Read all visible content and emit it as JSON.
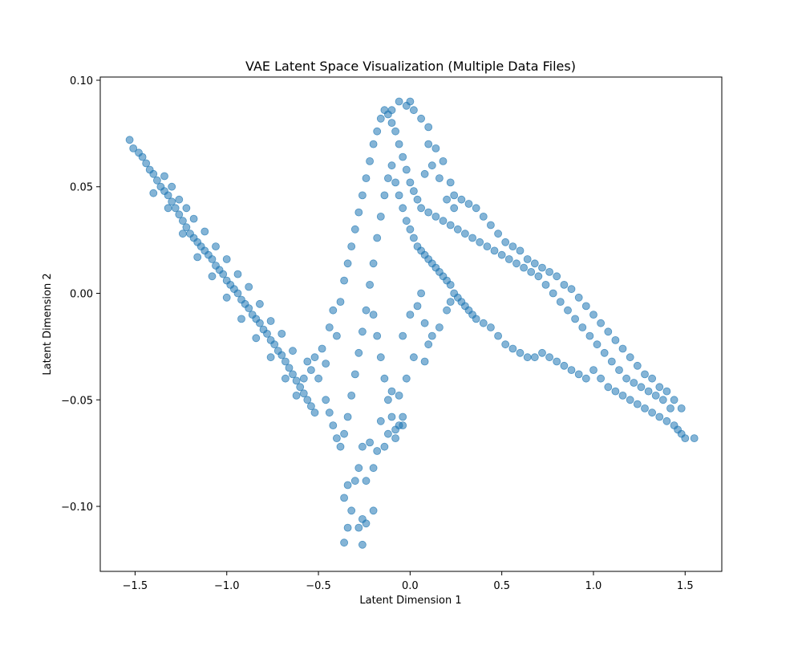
{
  "chart_data": {
    "type": "scatter",
    "title": "VAE Latent Space Visualization (Multiple Data Files)",
    "xlabel": "Latent Dimension 1",
    "ylabel": "Latent Dimension 2",
    "xlim": [
      -1.69,
      1.7
    ],
    "ylim": [
      -0.1305,
      0.1015
    ],
    "xticks": [
      -1.5,
      -1.0,
      -0.5,
      0.0,
      0.5,
      1.0,
      1.5
    ],
    "xtick_labels": [
      "−1.5",
      "−1.0",
      "−0.5",
      "0.0",
      "0.5",
      "1.0",
      "1.5"
    ],
    "yticks": [
      -0.1,
      -0.05,
      0.0,
      0.05,
      0.1
    ],
    "ytick_labels": [
      "−0.10",
      "−0.05",
      "0.00",
      "0.05",
      "0.10"
    ],
    "grid": false,
    "legend": false,
    "marker_color": "#1f77b4",
    "marker_alpha": 0.55,
    "series": [
      {
        "points": [
          [
            -1.53,
            0.072
          ],
          [
            -1.51,
            0.068
          ],
          [
            -1.48,
            0.066
          ],
          [
            -1.46,
            0.064
          ],
          [
            -1.44,
            0.061
          ],
          [
            -1.42,
            0.058
          ],
          [
            -1.4,
            0.056
          ],
          [
            -1.38,
            0.053
          ],
          [
            -1.36,
            0.05
          ],
          [
            -1.34,
            0.048
          ],
          [
            -1.32,
            0.046
          ],
          [
            -1.3,
            0.043
          ],
          [
            -1.28,
            0.04
          ],
          [
            -1.26,
            0.037
          ],
          [
            -1.24,
            0.034
          ],
          [
            -1.22,
            0.031
          ],
          [
            -1.2,
            0.028
          ],
          [
            -1.18,
            0.026
          ],
          [
            -1.16,
            0.024
          ],
          [
            -1.14,
            0.022
          ],
          [
            -1.12,
            0.02
          ],
          [
            -1.1,
            0.018
          ],
          [
            -1.08,
            0.016
          ],
          [
            -1.06,
            0.013
          ],
          [
            -1.04,
            0.011
          ],
          [
            -1.02,
            0.009
          ],
          [
            -1.0,
            0.006
          ],
          [
            -0.98,
            0.004
          ],
          [
            -0.96,
            0.002
          ],
          [
            -0.94,
            0.0
          ],
          [
            -0.92,
            -0.003
          ],
          [
            -0.9,
            -0.005
          ],
          [
            -0.88,
            -0.007
          ],
          [
            -0.86,
            -0.01
          ],
          [
            -0.84,
            -0.012
          ],
          [
            -0.82,
            -0.014
          ],
          [
            -0.8,
            -0.017
          ],
          [
            -0.78,
            -0.019
          ],
          [
            -0.76,
            -0.022
          ],
          [
            -0.74,
            -0.024
          ],
          [
            -0.72,
            -0.027
          ],
          [
            -0.7,
            -0.029
          ],
          [
            -0.68,
            -0.032
          ],
          [
            -0.66,
            -0.035
          ],
          [
            -0.64,
            -0.038
          ],
          [
            -0.62,
            -0.041
          ],
          [
            -0.6,
            -0.044
          ],
          [
            -0.58,
            -0.047
          ],
          [
            -0.56,
            -0.05
          ],
          [
            -0.54,
            -0.053
          ],
          [
            -0.52,
            -0.056
          ],
          [
            -1.34,
            0.055
          ],
          [
            -1.3,
            0.05
          ],
          [
            -1.26,
            0.044
          ],
          [
            -1.22,
            0.04
          ],
          [
            -1.18,
            0.035
          ],
          [
            -1.12,
            0.029
          ],
          [
            -1.06,
            0.022
          ],
          [
            -1.0,
            0.016
          ],
          [
            -0.94,
            0.009
          ],
          [
            -0.88,
            0.003
          ],
          [
            -0.82,
            -0.005
          ],
          [
            -0.76,
            -0.013
          ],
          [
            -0.7,
            -0.019
          ],
          [
            -0.64,
            -0.027
          ],
          [
            -1.4,
            0.047
          ],
          [
            -1.32,
            0.04
          ],
          [
            -1.24,
            0.028
          ],
          [
            -1.16,
            0.017
          ],
          [
            -1.08,
            0.008
          ],
          [
            -1.0,
            -0.002
          ],
          [
            -0.92,
            -0.012
          ],
          [
            -0.84,
            -0.021
          ],
          [
            -0.76,
            -0.03
          ],
          [
            -0.68,
            -0.04
          ],
          [
            -0.62,
            -0.048
          ],
          [
            -0.58,
            -0.04
          ],
          [
            -0.56,
            -0.032
          ],
          [
            -0.54,
            -0.036
          ],
          [
            -0.52,
            -0.03
          ],
          [
            -0.5,
            -0.04
          ],
          [
            -0.48,
            -0.026
          ],
          [
            -0.46,
            -0.033
          ],
          [
            -0.44,
            -0.016
          ],
          [
            -0.42,
            -0.008
          ],
          [
            -0.4,
            -0.02
          ],
          [
            -0.38,
            -0.004
          ],
          [
            -0.36,
            0.006
          ],
          [
            -0.34,
            0.014
          ],
          [
            -0.32,
            0.022
          ],
          [
            -0.3,
            0.03
          ],
          [
            -0.28,
            0.038
          ],
          [
            -0.26,
            0.046
          ],
          [
            -0.24,
            0.054
          ],
          [
            -0.22,
            0.062
          ],
          [
            -0.2,
            0.07
          ],
          [
            -0.18,
            0.076
          ],
          [
            -0.16,
            0.082
          ],
          [
            -0.14,
            0.086
          ],
          [
            -0.12,
            0.084
          ],
          [
            -0.1,
            0.08
          ],
          [
            -0.08,
            0.076
          ],
          [
            -0.06,
            0.07
          ],
          [
            -0.04,
            0.064
          ],
          [
            -0.02,
            0.058
          ],
          [
            0.0,
            0.052
          ],
          [
            0.02,
            0.048
          ],
          [
            0.04,
            0.044
          ],
          [
            -0.46,
            -0.05
          ],
          [
            -0.44,
            -0.056
          ],
          [
            -0.42,
            -0.062
          ],
          [
            -0.4,
            -0.068
          ],
          [
            -0.38,
            -0.072
          ],
          [
            -0.36,
            -0.066
          ],
          [
            -0.34,
            -0.058
          ],
          [
            -0.32,
            -0.048
          ],
          [
            -0.3,
            -0.038
          ],
          [
            -0.28,
            -0.028
          ],
          [
            -0.26,
            -0.018
          ],
          [
            -0.24,
            -0.008
          ],
          [
            -0.22,
            0.004
          ],
          [
            -0.2,
            0.014
          ],
          [
            -0.18,
            0.026
          ],
          [
            -0.16,
            0.036
          ],
          [
            -0.14,
            0.046
          ],
          [
            -0.12,
            0.054
          ],
          [
            -0.1,
            0.06
          ],
          [
            -0.08,
            0.052
          ],
          [
            -0.06,
            0.046
          ],
          [
            -0.04,
            0.04
          ],
          [
            -0.02,
            0.034
          ],
          [
            0.0,
            0.03
          ],
          [
            0.02,
            0.026
          ],
          [
            0.04,
            0.022
          ],
          [
            0.06,
            0.02
          ],
          [
            0.08,
            0.018
          ],
          [
            0.1,
            0.016
          ],
          [
            0.12,
            0.014
          ],
          [
            0.14,
            0.012
          ],
          [
            0.16,
            0.01
          ],
          [
            0.18,
            0.008
          ],
          [
            0.2,
            0.006
          ],
          [
            0.22,
            0.004
          ],
          [
            0.24,
            0.0
          ],
          [
            0.26,
            -0.002
          ],
          [
            0.28,
            -0.004
          ],
          [
            0.3,
            -0.006
          ],
          [
            0.32,
            -0.008
          ],
          [
            0.34,
            -0.01
          ],
          [
            0.36,
            -0.012
          ],
          [
            0.4,
            -0.014
          ],
          [
            0.44,
            -0.016
          ],
          [
            0.48,
            -0.02
          ],
          [
            0.52,
            -0.024
          ],
          [
            0.56,
            -0.026
          ],
          [
            0.6,
            -0.028
          ],
          [
            0.64,
            -0.03
          ],
          [
            0.68,
            -0.03
          ],
          [
            0.72,
            -0.028
          ],
          [
            0.76,
            -0.03
          ],
          [
            0.8,
            -0.032
          ],
          [
            0.84,
            -0.034
          ],
          [
            0.88,
            -0.036
          ],
          [
            0.92,
            -0.038
          ],
          [
            0.96,
            -0.04
          ],
          [
            1.0,
            -0.036
          ],
          [
            1.04,
            -0.04
          ],
          [
            1.08,
            -0.044
          ],
          [
            1.12,
            -0.046
          ],
          [
            1.16,
            -0.048
          ],
          [
            1.2,
            -0.05
          ],
          [
            1.24,
            -0.052
          ],
          [
            1.28,
            -0.054
          ],
          [
            1.32,
            -0.056
          ],
          [
            1.36,
            -0.058
          ],
          [
            1.4,
            -0.06
          ],
          [
            1.44,
            -0.062
          ],
          [
            1.46,
            -0.064
          ],
          [
            1.48,
            -0.066
          ],
          [
            1.5,
            -0.068
          ],
          [
            1.55,
            -0.068
          ],
          [
            0.06,
            0.04
          ],
          [
            0.1,
            0.038
          ],
          [
            0.14,
            0.036
          ],
          [
            0.18,
            0.034
          ],
          [
            0.22,
            0.032
          ],
          [
            0.26,
            0.03
          ],
          [
            0.3,
            0.028
          ],
          [
            0.34,
            0.026
          ],
          [
            0.38,
            0.024
          ],
          [
            0.42,
            0.022
          ],
          [
            0.46,
            0.02
          ],
          [
            0.5,
            0.018
          ],
          [
            0.54,
            0.016
          ],
          [
            0.58,
            0.014
          ],
          [
            0.62,
            0.012
          ],
          [
            0.66,
            0.01
          ],
          [
            0.7,
            0.008
          ],
          [
            0.74,
            0.004
          ],
          [
            0.78,
            0.0
          ],
          [
            0.82,
            -0.004
          ],
          [
            0.86,
            -0.008
          ],
          [
            0.9,
            -0.012
          ],
          [
            0.94,
            -0.016
          ],
          [
            0.98,
            -0.02
          ],
          [
            1.02,
            -0.024
          ],
          [
            1.06,
            -0.028
          ],
          [
            1.1,
            -0.032
          ],
          [
            1.14,
            -0.036
          ],
          [
            1.18,
            -0.04
          ],
          [
            1.22,
            -0.042
          ],
          [
            1.26,
            -0.044
          ],
          [
            1.3,
            -0.046
          ],
          [
            1.34,
            -0.048
          ],
          [
            1.38,
            -0.05
          ],
          [
            1.42,
            -0.054
          ],
          [
            0.2,
            0.044
          ],
          [
            0.24,
            0.046
          ],
          [
            0.28,
            0.044
          ],
          [
            0.32,
            0.042
          ],
          [
            0.36,
            0.04
          ],
          [
            0.4,
            0.036
          ],
          [
            0.44,
            0.032
          ],
          [
            0.48,
            0.028
          ],
          [
            0.52,
            0.024
          ],
          [
            0.56,
            0.022
          ],
          [
            0.6,
            0.02
          ],
          [
            0.64,
            0.016
          ],
          [
            0.68,
            0.014
          ],
          [
            0.72,
            0.012
          ],
          [
            0.76,
            0.01
          ],
          [
            0.8,
            0.008
          ],
          [
            0.84,
            0.004
          ],
          [
            0.88,
            0.002
          ],
          [
            0.92,
            -0.002
          ],
          [
            0.96,
            -0.006
          ],
          [
            1.0,
            -0.01
          ],
          [
            1.04,
            -0.014
          ],
          [
            1.08,
            -0.018
          ],
          [
            1.12,
            -0.022
          ],
          [
            1.16,
            -0.026
          ],
          [
            1.2,
            -0.03
          ],
          [
            1.24,
            -0.034
          ],
          [
            1.28,
            -0.038
          ],
          [
            1.32,
            -0.04
          ],
          [
            1.36,
            -0.044
          ],
          [
            1.4,
            -0.046
          ],
          [
            1.44,
            -0.05
          ],
          [
            1.48,
            -0.054
          ],
          [
            0.02,
            0.086
          ],
          [
            -0.02,
            0.088
          ],
          [
            0.06,
            0.082
          ],
          [
            0.1,
            0.078
          ],
          [
            0.14,
            0.068
          ],
          [
            0.18,
            0.062
          ],
          [
            0.22,
            0.052
          ],
          [
            0.24,
            0.04
          ],
          [
            0.1,
            0.07
          ],
          [
            0.12,
            0.06
          ],
          [
            0.08,
            0.056
          ],
          [
            0.16,
            0.054
          ],
          [
            -0.06,
            0.09
          ],
          [
            -0.1,
            0.086
          ],
          [
            0.0,
            0.09
          ],
          [
            -0.2,
            -0.01
          ],
          [
            -0.18,
            -0.02
          ],
          [
            -0.16,
            -0.03
          ],
          [
            -0.14,
            -0.04
          ],
          [
            -0.12,
            -0.05
          ],
          [
            -0.1,
            -0.058
          ],
          [
            -0.08,
            -0.064
          ],
          [
            -0.06,
            -0.062
          ],
          [
            -0.04,
            -0.058
          ],
          [
            -0.1,
            -0.046
          ],
          [
            -0.06,
            -0.048
          ],
          [
            -0.02,
            -0.04
          ],
          [
            0.02,
            -0.03
          ],
          [
            -0.04,
            -0.02
          ],
          [
            0.0,
            -0.01
          ],
          [
            0.04,
            -0.006
          ],
          [
            0.08,
            -0.014
          ],
          [
            0.1,
            -0.024
          ],
          [
            0.12,
            -0.02
          ],
          [
            0.16,
            -0.016
          ],
          [
            0.2,
            -0.008
          ],
          [
            0.22,
            -0.004
          ],
          [
            0.06,
            0.0
          ],
          [
            0.08,
            -0.032
          ],
          [
            -0.22,
            -0.07
          ],
          [
            -0.26,
            -0.072
          ],
          [
            -0.28,
            -0.082
          ],
          [
            -0.24,
            -0.088
          ],
          [
            -0.2,
            -0.082
          ],
          [
            -0.3,
            -0.088
          ],
          [
            -0.34,
            -0.09
          ],
          [
            -0.36,
            -0.096
          ],
          [
            -0.32,
            -0.102
          ],
          [
            -0.26,
            -0.106
          ],
          [
            -0.24,
            -0.108
          ],
          [
            -0.2,
            -0.102
          ],
          [
            -0.34,
            -0.11
          ],
          [
            -0.28,
            -0.11
          ],
          [
            -0.36,
            -0.117
          ],
          [
            -0.26,
            -0.118
          ],
          [
            -0.18,
            -0.074
          ],
          [
            -0.14,
            -0.072
          ],
          [
            -0.12,
            -0.066
          ],
          [
            -0.16,
            -0.06
          ],
          [
            -0.08,
            -0.068
          ],
          [
            -0.04,
            -0.062
          ]
        ]
      }
    ]
  }
}
